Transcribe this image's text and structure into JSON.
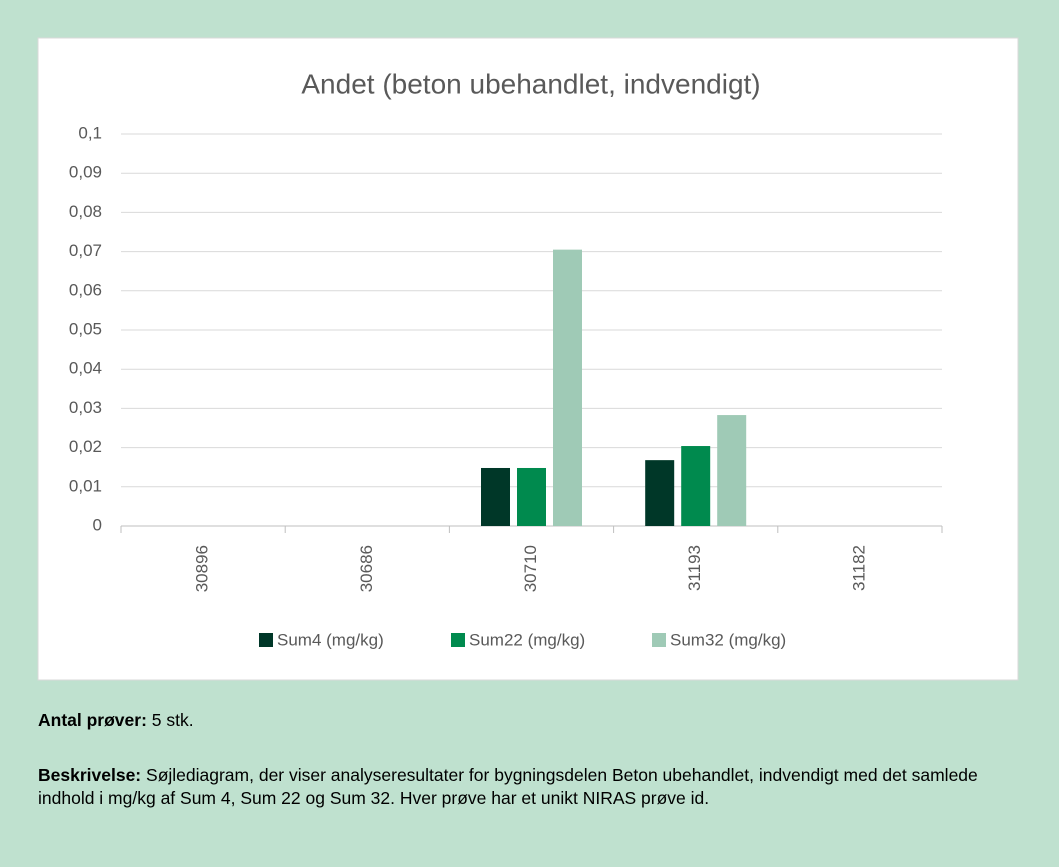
{
  "chart_data": {
    "type": "bar",
    "title": "Andet (beton ubehandlet, indvendigt)",
    "categories": [
      "30896",
      "30686",
      "30710",
      "31193",
      "31182"
    ],
    "series": [
      {
        "name": "Sum4 (mg/kg)",
        "color": "#003728",
        "values": [
          0,
          0,
          0.0148,
          0.0168,
          0
        ]
      },
      {
        "name": "Sum22 (mg/kg)",
        "color": "#008a4e",
        "values": [
          0,
          0,
          0.0148,
          0.0204,
          0
        ]
      },
      {
        "name": "Sum32 (mg/kg)",
        "color": "#9fcab6",
        "values": [
          0,
          0,
          0.0705,
          0.0283,
          0
        ]
      }
    ],
    "ylim": [
      0,
      0.1
    ],
    "yticks": [
      0,
      {
        "value": 0.01,
        "label": "0,01"
      },
      {
        "value": 0.02,
        "label": "0,02"
      },
      {
        "value": 0.03,
        "label": "0,03"
      },
      {
        "value": 0.04,
        "label": "0,04"
      },
      {
        "value": 0.05,
        "label": "0,05"
      },
      {
        "value": 0.06,
        "label": "0,06"
      },
      {
        "value": 0.07,
        "label": "0,07"
      },
      {
        "value": 0.08,
        "label": "0,08"
      },
      {
        "value": 0.09,
        "label": "0,09"
      },
      {
        "value": 0.1,
        "label": "0,1"
      }
    ],
    "grid": true,
    "legend": "bottom"
  },
  "caption": {
    "count_label": "Antal prøver:",
    "count_value": "5 stk.",
    "description_label": "Beskrivelse:",
    "description": "Søjlediagram, der viser analyseresultater for bygningsdelen Beton ubehandlet, indvendigt med det samlede indhold i mg/kg af Sum 4, Sum 22 og Sum 32. Hver prøve har et unikt NIRAS prøve id."
  }
}
